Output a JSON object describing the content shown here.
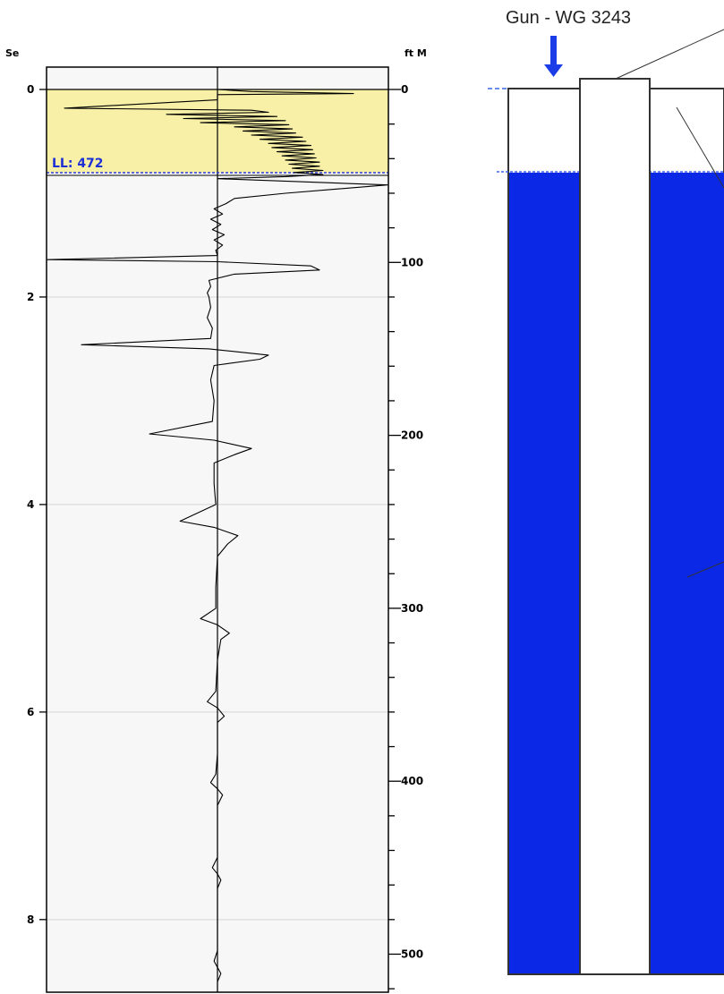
{
  "log_chart": {
    "left_axis_label": "Se",
    "right_axis_label": "ft M",
    "liquid_level_label": "LL: 472",
    "colors": {
      "highlight": "#f7f0a6",
      "trace": "#000000",
      "liquid_marker": "#2a3bd8",
      "plot_background": "#f7f7f7"
    }
  },
  "well_diagram": {
    "gun_label": "Gun - WG 3243",
    "colors": {
      "fluid": "#0a28e6",
      "arrow": "#1b3de8",
      "level_dash": "#3d63ef"
    }
  },
  "chart_data": {
    "type": "line",
    "title": "",
    "xlabel": "",
    "ylabel": "Se",
    "secondary_ylabel": "ft M",
    "ylim": [
      0,
      8.7
    ],
    "y_ticks": [
      0,
      2,
      4,
      6,
      8
    ],
    "secondary_ylim": [
      0,
      522
    ],
    "secondary_ticks": [
      0,
      100,
      200,
      300,
      400,
      500
    ],
    "grid": true,
    "liquid_level": {
      "label": "LL: 472",
      "time": 0.85
    },
    "series": [
      {
        "points": [
          [
            0.0,
            0.0
          ],
          [
            0.02,
            0.2
          ],
          [
            0.04,
            0.8
          ],
          [
            0.05,
            0.0
          ],
          [
            0.1,
            0.0
          ],
          [
            0.18,
            -0.9
          ],
          [
            0.2,
            0.2
          ],
          [
            0.22,
            0.3
          ],
          [
            0.24,
            -0.3
          ],
          [
            0.26,
            0.35
          ],
          [
            0.28,
            -0.2
          ],
          [
            0.3,
            0.4
          ],
          [
            0.32,
            -0.1
          ],
          [
            0.34,
            0.42
          ],
          [
            0.36,
            0.1
          ],
          [
            0.38,
            0.44
          ],
          [
            0.4,
            0.15
          ],
          [
            0.42,
            0.46
          ],
          [
            0.44,
            0.2
          ],
          [
            0.46,
            0.5
          ],
          [
            0.48,
            0.25
          ],
          [
            0.5,
            0.52
          ],
          [
            0.52,
            0.3
          ],
          [
            0.54,
            0.55
          ],
          [
            0.56,
            0.32
          ],
          [
            0.58,
            0.56
          ],
          [
            0.6,
            0.35
          ],
          [
            0.62,
            0.57
          ],
          [
            0.64,
            0.38
          ],
          [
            0.66,
            0.58
          ],
          [
            0.68,
            0.4
          ],
          [
            0.7,
            0.6
          ],
          [
            0.72,
            0.42
          ],
          [
            0.74,
            0.6
          ],
          [
            0.76,
            0.44
          ],
          [
            0.78,
            0.62
          ],
          [
            0.8,
            0.45
          ],
          [
            0.82,
            0.62
          ],
          [
            0.84,
            0.4
          ],
          [
            0.86,
            0.0
          ],
          [
            0.92,
            1.0
          ],
          [
            0.96,
            0.7
          ],
          [
            1.0,
            0.4
          ],
          [
            1.05,
            0.1
          ],
          [
            1.1,
            0.05
          ],
          [
            1.15,
            -0.02
          ],
          [
            1.2,
            0.03
          ],
          [
            1.25,
            -0.04
          ],
          [
            1.3,
            0.02
          ],
          [
            1.35,
            -0.03
          ],
          [
            1.4,
            0.04
          ],
          [
            1.45,
            -0.02
          ],
          [
            1.5,
            0.03
          ],
          [
            1.55,
            -0.01
          ],
          [
            1.6,
            0.0
          ],
          [
            1.64,
            -1.0
          ],
          [
            1.66,
            0.0
          ],
          [
            1.7,
            0.55
          ],
          [
            1.74,
            0.6
          ],
          [
            1.78,
            0.1
          ],
          [
            1.84,
            -0.05
          ],
          [
            1.9,
            -0.04
          ],
          [
            1.96,
            -0.06
          ],
          [
            2.0,
            -0.05
          ],
          [
            2.1,
            -0.04
          ],
          [
            2.2,
            -0.06
          ],
          [
            2.3,
            -0.03
          ],
          [
            2.4,
            -0.04
          ],
          [
            2.46,
            -0.8
          ],
          [
            2.5,
            -0.05
          ],
          [
            2.56,
            0.3
          ],
          [
            2.6,
            0.25
          ],
          [
            2.66,
            -0.02
          ],
          [
            2.8,
            -0.04
          ],
          [
            3.0,
            -0.02
          ],
          [
            3.2,
            -0.03
          ],
          [
            3.32,
            -0.4
          ],
          [
            3.38,
            -0.02
          ],
          [
            3.46,
            0.2
          ],
          [
            3.52,
            0.1
          ],
          [
            3.6,
            -0.02
          ],
          [
            3.8,
            -0.02
          ],
          [
            4.0,
            -0.01
          ],
          [
            4.16,
            -0.22
          ],
          [
            4.22,
            -0.02
          ],
          [
            4.3,
            0.12
          ],
          [
            4.38,
            0.06
          ],
          [
            4.5,
            0.0
          ],
          [
            4.8,
            -0.01
          ],
          [
            5.0,
            -0.01
          ],
          [
            5.1,
            -0.1
          ],
          [
            5.16,
            0.0
          ],
          [
            5.24,
            0.07
          ],
          [
            5.3,
            0.02
          ],
          [
            5.5,
            0.0
          ],
          [
            5.8,
            -0.01
          ],
          [
            5.9,
            -0.06
          ],
          [
            5.96,
            0.0
          ],
          [
            6.04,
            0.04
          ],
          [
            6.1,
            0.0
          ],
          [
            6.4,
            0.0
          ],
          [
            6.6,
            -0.01
          ],
          [
            6.68,
            -0.04
          ],
          [
            6.74,
            0.0
          ],
          [
            6.8,
            0.03
          ],
          [
            6.9,
            0.0
          ],
          [
            7.2,
            0.0
          ],
          [
            7.4,
            0.0
          ],
          [
            7.5,
            -0.03
          ],
          [
            7.56,
            0.0
          ],
          [
            7.62,
            0.02
          ],
          [
            7.7,
            0.0
          ],
          [
            8.0,
            0.0
          ],
          [
            8.3,
            0.0
          ],
          [
            8.4,
            -0.02
          ],
          [
            8.46,
            0.0
          ],
          [
            8.52,
            0.02
          ],
          [
            8.6,
            0.0
          ],
          [
            8.7,
            0.0
          ]
        ]
      }
    ]
  }
}
